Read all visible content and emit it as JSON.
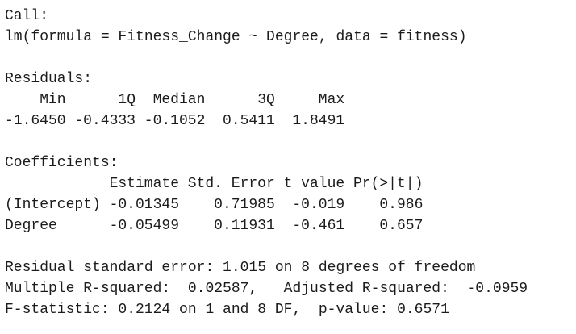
{
  "call": {
    "label": "Call:",
    "formula": "lm(formula = Fitness_Change ~ Degree, data = fitness)"
  },
  "residuals": {
    "label": "Residuals:",
    "header": [
      "Min",
      "1Q",
      "Median",
      "3Q",
      "Max"
    ],
    "values": [
      "-1.6450",
      "-0.4333",
      "-0.1052",
      "0.5411",
      "1.8491"
    ]
  },
  "coefficients": {
    "label": "Coefficients:",
    "header": [
      "Estimate",
      "Std. Error",
      "t value",
      "Pr(>|t|)"
    ],
    "rows": [
      {
        "name": "(Intercept)",
        "cells": [
          "-0.01345",
          "0.71985",
          "-0.019",
          "0.986"
        ]
      },
      {
        "name": "Degree",
        "cells": [
          "-0.05499",
          "0.11931",
          "-0.461",
          "0.657"
        ]
      }
    ]
  },
  "summary": [
    "Residual standard error: 1.015 on 8 degrees of freedom",
    "Multiple R-squared:  0.02587,   Adjusted R-squared:  -0.0959",
    "F-statistic: 0.2124 on 1 and 8 DF,  p-value: 0.6571"
  ]
}
